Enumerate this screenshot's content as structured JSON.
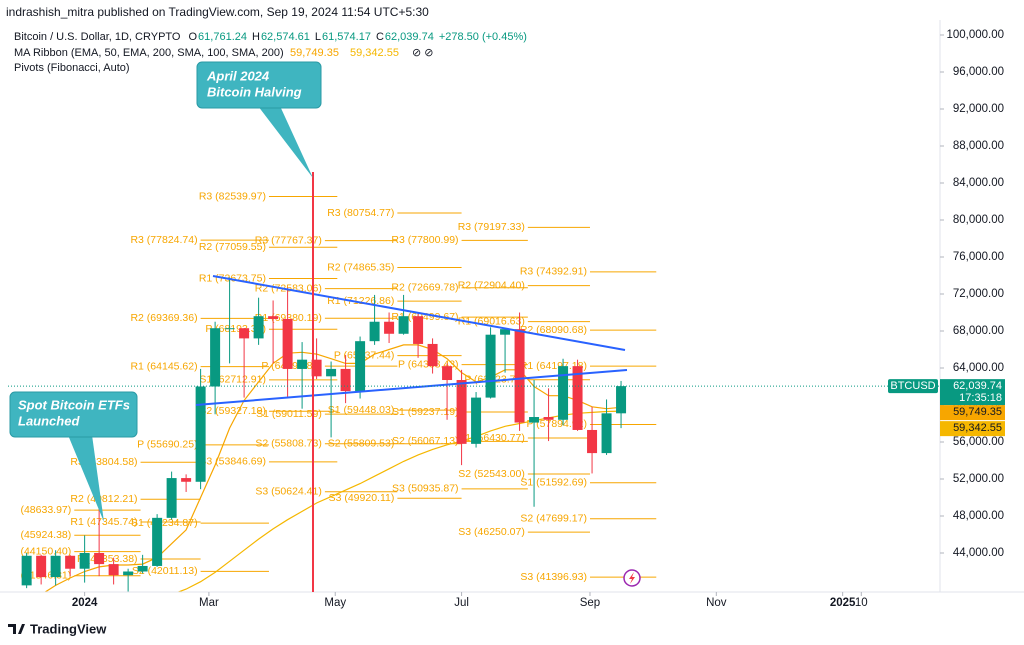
{
  "chart_data": {
    "type": "candlestick",
    "header": "indrashish_mitra published on TradingView.com, Sep 19, 2024 11:54 UTC+5:30",
    "legend": {
      "symbol": "Bitcoin / U.S. Dollar, 1D, CRYPTO",
      "ohlc": [
        {
          "label": "O",
          "value": "61,761.24"
        },
        {
          "label": "H",
          "value": "62,574.61"
        },
        {
          "label": "L",
          "value": "61,574.17"
        },
        {
          "label": "C",
          "value": "62,039.74"
        }
      ],
      "change": "+278.50 (+0.45%)",
      "ma_title": "MA Ribbon (EMA, 50, EMA, 200, SMA, 100, SMA, 200)",
      "ma_values": [
        "59,749.35",
        "59,342.55"
      ],
      "pivots_title": "Pivots (Fibonacci, Auto)"
    },
    "x": [
      "2023-12-04",
      "2023-12-11",
      "2023-12-18",
      "2023-12-25",
      "2024-01-01",
      "2024-01-08",
      "2024-01-15",
      "2024-01-22",
      "2024-01-29",
      "2024-02-05",
      "2024-02-12",
      "2024-02-19",
      "2024-02-26",
      "2024-03-04",
      "2024-03-11",
      "2024-03-18",
      "2024-03-25",
      "2024-04-01",
      "2024-04-08",
      "2024-04-15",
      "2024-04-22",
      "2024-04-29",
      "2024-05-06",
      "2024-05-13",
      "2024-05-20",
      "2024-05-27",
      "2024-06-03",
      "2024-06-10",
      "2024-06-17",
      "2024-06-24",
      "2024-07-01",
      "2024-07-08",
      "2024-07-15",
      "2024-07-22",
      "2024-07-29",
      "2024-08-05",
      "2024-08-12",
      "2024-08-19",
      "2024-08-26",
      "2024-09-02",
      "2024-09-09",
      "2024-09-16"
    ],
    "series": [
      {
        "name": "BTCUSD",
        "up_color": "#089981",
        "down_color": "#f23645",
        "open": [
          40500,
          43700,
          41400,
          43700,
          42300,
          44000,
          42800,
          41600,
          42000,
          42600,
          47800,
          52100,
          51700,
          62000,
          68300,
          68300,
          67200,
          69600,
          69300,
          63900,
          64900,
          63100,
          63900,
          61500,
          66900,
          69000,
          67700,
          69600,
          66600,
          64200,
          62700,
          55800,
          60800,
          67600,
          68200,
          58100,
          58700,
          58400,
          64200,
          57300,
          54800,
          59100
        ],
        "high": [
          44000,
          43800,
          44300,
          43800,
          45900,
          49000,
          43500,
          42300,
          43800,
          48200,
          52800,
          52500,
          63900,
          69000,
          73800,
          68300,
          71600,
          71300,
          72700,
          66800,
          67200,
          64700,
          65400,
          67400,
          71900,
          70000,
          71900,
          70000,
          67200,
          64500,
          63800,
          61400,
          68400,
          68300,
          70000,
          62700,
          61800,
          65000,
          64900,
          59800,
          60600,
          62600
        ],
        "low": [
          40200,
          40600,
          40500,
          41500,
          40800,
          41500,
          40600,
          38500,
          41800,
          42500,
          47600,
          50600,
          50900,
          59000,
          64500,
          60800,
          66500,
          64500,
          60700,
          59600,
          62800,
          56500,
          60200,
          60700,
          66500,
          66700,
          67600,
          65100,
          63400,
          58400,
          53500,
          55400,
          60700,
          63500,
          57200,
          49000,
          56100,
          57800,
          57200,
          52600,
          54600,
          57500
        ],
        "close": [
          43700,
          41400,
          43700,
          42300,
          44000,
          42800,
          41600,
          42000,
          42600,
          47800,
          52100,
          51700,
          62000,
          68300,
          68300,
          67200,
          69600,
          69300,
          63900,
          64900,
          63100,
          63900,
          61500,
          66900,
          69000,
          67700,
          69600,
          66600,
          64200,
          62700,
          55800,
          60800,
          67600,
          68200,
          58100,
          58700,
          58400,
          64200,
          57300,
          54800,
          59100,
          62039.74
        ]
      }
    ],
    "ma": [
      {
        "color": "#f7a600",
        "values": [
          38000,
          39500,
          40500,
          41300,
          42000,
          42500,
          42700,
          42700,
          42800,
          43500,
          45000,
          46500,
          50000,
          53500,
          57500,
          60500,
          62500,
          64500,
          65600,
          65700,
          65500,
          65000,
          64500,
          64500,
          65500,
          66000,
          66500,
          66500,
          66000,
          65000,
          63500,
          62500,
          63000,
          63800,
          63800,
          62000,
          61000,
          61000,
          60500,
          59800,
          59600,
          59749.35
        ]
      },
      {
        "color": "#f5b700",
        "values": [
          36000,
          36300,
          36600,
          36900,
          37200,
          37500,
          37800,
          38100,
          38400,
          38900,
          39500,
          40100,
          40900,
          41900,
          43100,
          44300,
          45500,
          46600,
          47600,
          48500,
          49400,
          50100,
          50800,
          51500,
          52300,
          53100,
          53900,
          54600,
          55200,
          55700,
          56100,
          56600,
          57200,
          57700,
          58000,
          58300,
          58600,
          58900,
          59100,
          59200,
          59300,
          59342.55
        ]
      }
    ],
    "pivots": [
      {
        "from": "2023-12-27",
        "to": "2024-01-28",
        "levels": [
          {
            "label": "(48633.97)",
            "value": 48633.97
          },
          {
            "label": "(45924.38)",
            "value": 45924.38
          },
          {
            "label": "(44150.40)",
            "value": 44150.4
          },
          {
            "label": "(41546.31)",
            "value": 41546.31
          }
        ]
      },
      {
        "from": "2024-01-28",
        "to": "2024-02-26",
        "levels": [
          {
            "label": "R3 (53804.58)",
            "value": 53804.58
          },
          {
            "label": "R2 (49812.21)",
            "value": 49812.21
          },
          {
            "label": "R1 (47345.74)",
            "value": 47345.74
          },
          {
            "label": "P (43353.38)",
            "value": 43353.38
          }
        ]
      },
      {
        "from": "2024-02-26",
        "to": "2024-03-30",
        "levels": [
          {
            "label": "R3 (77824.74)",
            "value": 77824.74
          },
          {
            "label": "R2 (69369.36)",
            "value": 69369.36
          },
          {
            "label": "R1 (64145.62)",
            "value": 64145.62
          },
          {
            "label": "P (55690.25)",
            "value": 55690.25
          },
          {
            "label": "S1 (47234.87)",
            "value": 47234.87
          },
          {
            "label": "S2 (42011.13)",
            "value": 42011.13
          }
        ]
      },
      {
        "from": "2024-03-30",
        "to": "2024-05-02",
        "levels": [
          {
            "label": "R3 (82539.97)",
            "value": 82539.97
          },
          {
            "label": "R2 (77059.55)",
            "value": 77059.55
          },
          {
            "label": "R1 (73673.75)",
            "value": 73673.75
          },
          {
            "label": "P (68193.33)",
            "value": 68193.33
          },
          {
            "label": "S1 (62712.91)",
            "value": 62712.91
          },
          {
            "label": "S2 (59327.19)",
            "value": 59327.19
          },
          {
            "label": "S3 (53846.69)",
            "value": 53846.69
          }
        ]
      },
      {
        "from": "2024-04-26",
        "to": "2024-05-31",
        "levels": [
          {
            "label": "R3 (77767.37)",
            "value": 77767.37
          },
          {
            "label": "R2 (72583.06)",
            "value": 72583.06
          },
          {
            "label": "R1 (69380.19)",
            "value": 69380.19
          },
          {
            "label": "P (64195.89)",
            "value": 64195.89
          },
          {
            "label": "S1 (59011.59)",
            "value": 59011.59
          },
          {
            "label": "S2 (55808.73)",
            "value": 55808.73
          },
          {
            "label": "S3 (50624.41)",
            "value": 50624.41
          }
        ]
      },
      {
        "from": "2024-05-31",
        "to": "2024-07-01",
        "levels": [
          {
            "label": "R3 (80754.77)",
            "value": 80754.77
          },
          {
            "label": "R2 (74865.35)",
            "value": 74865.35
          },
          {
            "label": "R1 (71226.86)",
            "value": 71226.86
          },
          {
            "label": "P (65337.44)",
            "value": 65337.44
          },
          {
            "label": "S1 (59448.03)",
            "value": 59448.03
          },
          {
            "label": "S2 (55809.53)",
            "value": 55809.53
          },
          {
            "label": "S3 (49920.11)",
            "value": 49920.11
          }
        ]
      },
      {
        "from": "2024-07-01",
        "to": "2024-08-02",
        "levels": [
          {
            "label": "R3 (77800.99)",
            "value": 77800.99
          },
          {
            "label": "R2 (72669.78)",
            "value": 72669.78
          },
          {
            "label": "R1 (69499.67)",
            "value": 69499.67
          },
          {
            "label": "P (64368.43)",
            "value": 64368.43
          },
          {
            "label": "S1 (59237.19)",
            "value": 59237.19
          },
          {
            "label": "S2 (56067.13)",
            "value": 56067.13
          },
          {
            "label": "S3 (50935.87)",
            "value": 50935.87
          }
        ]
      },
      {
        "from": "2024-08-02",
        "to": "2024-09-01",
        "levels": [
          {
            "label": "R3 (79197.33)",
            "value": 79197.33
          },
          {
            "label": "R2 (72904.40)",
            "value": 72904.4
          },
          {
            "label": "R1 (69016.63)",
            "value": 69016.63
          },
          {
            "label": "P (62723.70)",
            "value": 62723.7
          },
          {
            "label": "S1 (56430.77)",
            "value": 56430.77
          },
          {
            "label": "S2 (52543.00)",
            "value": 52543.0
          },
          {
            "label": "S3 (46250.07)",
            "value": 46250.07
          }
        ]
      },
      {
        "from": "2024-09-01",
        "to": "2024-10-03",
        "levels": [
          {
            "label": "R3 (74392.91)",
            "value": 74392.91
          },
          {
            "label": "R2 (68090.68)",
            "value": 68090.68
          },
          {
            "label": "R1 (64197.18)",
            "value": 64197.18
          },
          {
            "label": "P (57894.92)",
            "value": 57894.92
          },
          {
            "label": "S1 (51592.69)",
            "value": 51592.69
          },
          {
            "label": "S2 (47699.17)",
            "value": 47699.17
          },
          {
            "label": "S3 (41396.93)",
            "value": 41396.93
          }
        ]
      }
    ],
    "annotations": [
      {
        "lines": [
          "April 2024",
          "Bitcoin Halving"
        ]
      },
      {
        "lines": [
          "Spot Bitcoin ETFs",
          "Launched"
        ]
      }
    ],
    "price_tag": {
      "price": "62,039.74",
      "countdown": "17:35:18"
    },
    "footer": "TradingView",
    "xlim": [
      "2023-11-25",
      "2025-02-17"
    ],
    "xticks": [
      {
        "value": "2024-01-01",
        "label": "2024"
      },
      {
        "value": "2024-03-01",
        "label": "Mar"
      },
      {
        "value": "2024-05-01",
        "label": "May"
      },
      {
        "value": "2024-07-01",
        "label": "Jul"
      },
      {
        "value": "2024-09-01",
        "label": "Sep"
      },
      {
        "value": "2024-11-01",
        "label": "Nov"
      },
      {
        "value": "2025-01-01",
        "label": "2025"
      },
      {
        "value": "2025-01-10",
        "label": "10"
      }
    ],
    "ylim": [
      40000,
      101620
    ],
    "yticks": [
      {
        "value": 44000,
        "label": "44,000.00"
      },
      {
        "value": 48000,
        "label": "48,000.00"
      },
      {
        "value": 52000,
        "label": "52,000.00"
      },
      {
        "value": 56000,
        "label": "56,000.00"
      },
      {
        "value": 60000,
        "label": "60,000.00"
      },
      {
        "value": 64000,
        "label": "64,000.00"
      },
      {
        "value": 68000,
        "label": "68,000.00"
      },
      {
        "value": 72000,
        "label": "72,000.00"
      },
      {
        "value": 76000,
        "label": "76,000.00"
      },
      {
        "value": 80000,
        "label": "80,000.00"
      },
      {
        "value": 84000,
        "label": "84,000.00"
      },
      {
        "value": 88000,
        "label": "88,000.00"
      },
      {
        "value": 92000,
        "label": "92,000.00"
      },
      {
        "value": 96000,
        "label": "96,000.00"
      },
      {
        "value": 100000,
        "label": "100,000.00"
      }
    ],
    "grid": false
  }
}
